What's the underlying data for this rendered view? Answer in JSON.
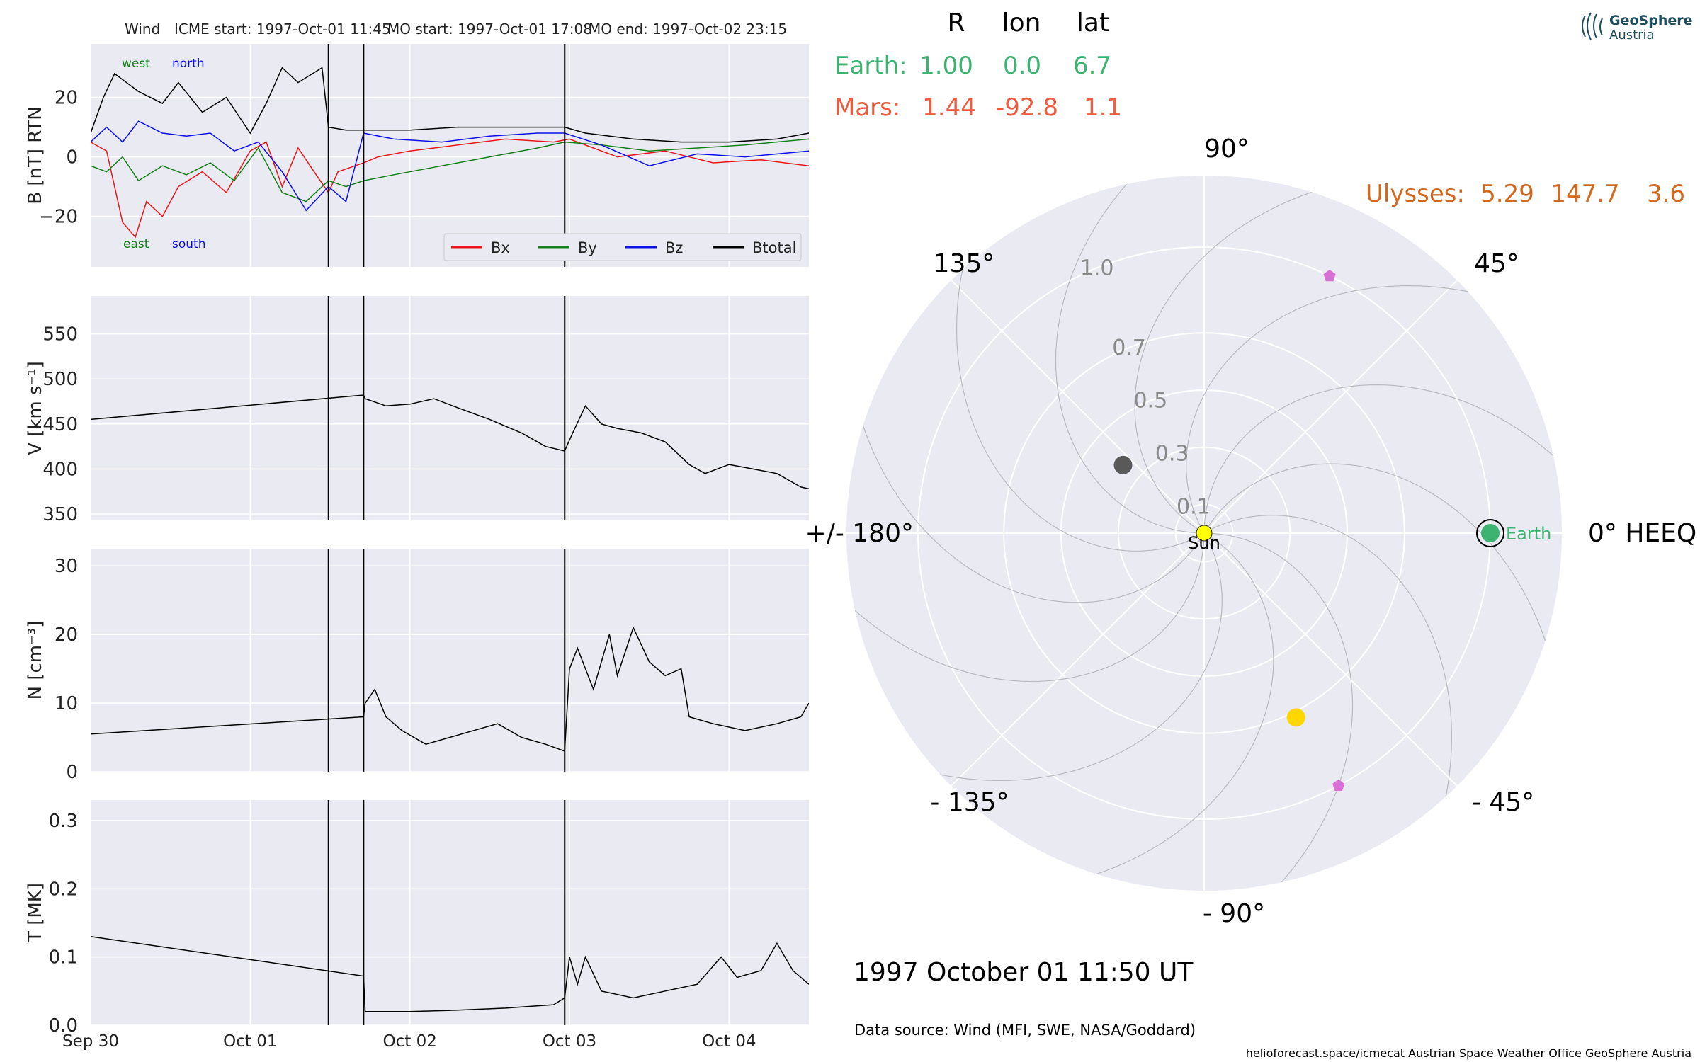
{
  "header": {
    "spacecraft": "Wind",
    "icme_start": "ICME start: 1997-Oct-01 11:45",
    "mo_start": "MO start: 1997-Oct-01 17:08",
    "mo_end": "MO end: 1997-Oct-02 23:15"
  },
  "logo": {
    "line1": "GeoSphere",
    "line2": "Austria"
  },
  "colors": {
    "bx": "#e8161a",
    "by": "#15801a",
    "bz": "#0b10e6",
    "btotal": "#000000",
    "panel_bg": "#eaeaf2",
    "earth": "#3cb371",
    "mars": "#ee5b3e",
    "ulysses": "#d2691e",
    "mercury": "#595959",
    "venus": "#ffd700",
    "stereo": "#da70d6",
    "sun": "#ffff00"
  },
  "chart_data": [
    {
      "type": "line",
      "ylabel": "B [nT] RTN",
      "ylim": [
        -37,
        38
      ],
      "yticks": [
        20,
        0,
        -20
      ],
      "ytick_labels": [
        "20",
        "0",
        "−20"
      ],
      "xlim_days": [
        0,
        4.5
      ],
      "xtick_labels": [
        "Sep 30",
        "Oct 01",
        "Oct 02",
        "Oct 03",
        "Oct 04"
      ],
      "event_lines_days": [
        1.49,
        1.71,
        2.97
      ],
      "annotations": {
        "west": "west",
        "north": "north",
        "east": "east",
        "south": "south"
      },
      "legend_position": "lower right",
      "series": [
        {
          "name": "Bx",
          "color_key": "bx",
          "x": [
            0,
            0.1,
            0.15,
            0.2,
            0.28,
            0.35,
            0.45,
            0.55,
            0.7,
            0.85,
            1.0,
            1.1,
            1.2,
            1.3,
            1.4,
            1.49,
            1.55,
            1.71,
            1.8,
            2.0,
            2.3,
            2.6,
            2.9,
            3.0,
            3.3,
            3.6,
            3.9,
            4.2,
            4.5
          ],
          "y": [
            5,
            2,
            -10,
            -22,
            -27,
            -15,
            -20,
            -10,
            -5,
            -12,
            2,
            5,
            -10,
            3,
            -5,
            -12,
            -5,
            -2,
            0,
            2,
            4,
            6,
            5,
            6,
            0,
            2,
            -2,
            -1,
            -3
          ]
        },
        {
          "name": "By",
          "color_key": "by",
          "x": [
            0,
            0.1,
            0.2,
            0.3,
            0.45,
            0.6,
            0.75,
            0.9,
            1.05,
            1.2,
            1.35,
            1.49,
            1.6,
            1.71,
            1.9,
            2.2,
            2.5,
            2.8,
            2.97,
            3.2,
            3.5,
            3.8,
            4.1,
            4.5
          ],
          "y": [
            -3,
            -5,
            0,
            -8,
            -3,
            -6,
            -2,
            -8,
            3,
            -12,
            -15,
            -8,
            -10,
            -8,
            -6,
            -3,
            0,
            3,
            5,
            4,
            2,
            3,
            4,
            6
          ]
        },
        {
          "name": "Bz",
          "color_key": "bz",
          "x": [
            0,
            0.1,
            0.2,
            0.3,
            0.45,
            0.6,
            0.75,
            0.9,
            1.05,
            1.2,
            1.35,
            1.49,
            1.6,
            1.71,
            1.9,
            2.2,
            2.5,
            2.8,
            2.97,
            3.2,
            3.5,
            3.8,
            4.1,
            4.5
          ],
          "y": [
            5,
            10,
            5,
            12,
            8,
            7,
            8,
            2,
            5,
            -5,
            -18,
            -10,
            -15,
            8,
            6,
            5,
            7,
            8,
            8,
            4,
            -3,
            1,
            0,
            2
          ]
        },
        {
          "name": "Btotal",
          "color_key": "btotal",
          "x": [
            0,
            0.08,
            0.15,
            0.3,
            0.45,
            0.55,
            0.7,
            0.85,
            1.0,
            1.1,
            1.2,
            1.3,
            1.45,
            1.49,
            1.6,
            1.71,
            2.0,
            2.3,
            2.6,
            2.97,
            3.1,
            3.4,
            3.7,
            4.0,
            4.3,
            4.5
          ],
          "y": [
            8,
            20,
            28,
            22,
            18,
            25,
            15,
            20,
            8,
            18,
            30,
            25,
            30,
            10,
            9,
            9,
            9,
            10,
            10,
            10,
            8,
            6,
            5,
            5,
            6,
            8
          ]
        }
      ]
    },
    {
      "type": "line",
      "ylabel": "V [km s⁻¹]",
      "ylim": [
        343,
        592
      ],
      "yticks": [
        550,
        500,
        450,
        400,
        350
      ],
      "ytick_labels": [
        "550",
        "500",
        "450",
        "400",
        "350"
      ],
      "xlim_days": [
        0,
        4.5
      ],
      "event_lines_days": [
        1.49,
        1.71,
        2.97
      ],
      "series": [
        {
          "name": "",
          "color_key": "btotal",
          "x": [
            0,
            1.71,
            1.72,
            1.85,
            2.0,
            2.15,
            2.3,
            2.5,
            2.7,
            2.85,
            2.97,
            3.02,
            3.1,
            3.2,
            3.3,
            3.45,
            3.6,
            3.75,
            3.85,
            4.0,
            4.15,
            4.3,
            4.45,
            4.5
          ],
          "y": [
            455,
            482,
            478,
            470,
            472,
            478,
            468,
            455,
            440,
            425,
            420,
            440,
            470,
            450,
            445,
            440,
            430,
            405,
            395,
            405,
            400,
            395,
            380,
            378
          ]
        }
      ]
    },
    {
      "type": "line",
      "ylabel": "N [cm⁻³]",
      "ylim": [
        0,
        32.5
      ],
      "yticks": [
        30,
        20,
        10,
        0
      ],
      "ytick_labels": [
        "30",
        "20",
        "10",
        "0"
      ],
      "xlim_days": [
        0,
        4.5
      ],
      "event_lines_days": [
        1.49,
        1.71,
        2.97
      ],
      "series": [
        {
          "name": "",
          "color_key": "btotal",
          "x": [
            0,
            1.71,
            1.72,
            1.78,
            1.85,
            1.95,
            2.1,
            2.25,
            2.4,
            2.55,
            2.7,
            2.85,
            2.97,
            3.0,
            3.05,
            3.15,
            3.25,
            3.3,
            3.4,
            3.5,
            3.6,
            3.7,
            3.75,
            3.9,
            4.1,
            4.3,
            4.45,
            4.5
          ],
          "y": [
            5.5,
            8,
            10,
            12,
            8,
            6,
            4,
            5,
            6,
            7,
            5,
            4,
            3,
            15,
            18,
            12,
            20,
            14,
            21,
            16,
            14,
            15,
            8,
            7,
            6,
            7,
            8,
            10
          ]
        }
      ]
    },
    {
      "type": "line",
      "ylabel": "T [MK]",
      "ylim": [
        0,
        0.33
      ],
      "yticks": [
        0.3,
        0.2,
        0.1,
        0.0
      ],
      "ytick_labels": [
        "0.3",
        "0.2",
        "0.1",
        "0.0"
      ],
      "xlim_days": [
        0,
        4.5
      ],
      "xtick_labels": [
        "Sep 30",
        "Oct 01",
        "Oct 02",
        "Oct 03",
        "Oct 04"
      ],
      "event_lines_days": [
        1.49,
        1.71,
        2.97
      ],
      "series": [
        {
          "name": "",
          "color_key": "btotal",
          "x": [
            0,
            1.71,
            1.72,
            2.0,
            2.3,
            2.6,
            2.9,
            2.97,
            3.0,
            3.05,
            3.1,
            3.2,
            3.4,
            3.6,
            3.8,
            3.95,
            4.05,
            4.2,
            4.3,
            4.4,
            4.5
          ],
          "y": [
            0.13,
            0.072,
            0.02,
            0.02,
            0.022,
            0.025,
            0.03,
            0.04,
            0.1,
            0.06,
            0.1,
            0.05,
            0.04,
            0.05,
            0.06,
            0.1,
            0.07,
            0.08,
            0.12,
            0.08,
            0.06
          ]
        }
      ]
    },
    {
      "type": "scatter",
      "subtype": "polar",
      "radial_ticks": [
        "1.0",
        "0.7",
        "0.5",
        "0.3",
        "0.1"
      ],
      "radial_tick_values": [
        1.0,
        0.7,
        0.5,
        0.3,
        0.1
      ],
      "angle_labels": {
        "a0": "0° HEEQ",
        "a45": "45°",
        "a90": "90°",
        "a135": "135°",
        "a180": "+/- 180°",
        "am135": "- 135°",
        "am90": "- 90°",
        "am45": "- 45°"
      },
      "points": [
        {
          "name": "Earth",
          "r": 1.0,
          "lon": 0.0,
          "color_key": "earth",
          "ring": true,
          "label": "Earth"
        },
        {
          "name": "Mercury",
          "r": 0.37,
          "lon": 140,
          "color_key": "mercury"
        },
        {
          "name": "Venus",
          "r": 0.72,
          "lon": -63.5,
          "color_key": "venus"
        },
        {
          "name": "Sun",
          "r": 0.0,
          "lon": 0.0,
          "color_key": "sun",
          "label": "Sun"
        },
        {
          "name": "STEREO-A",
          "r": 1.0,
          "lon": 64,
          "color_key": "stereo",
          "marker": "pentagon"
        },
        {
          "name": "STEREO-B",
          "r": 1.0,
          "lon": -62,
          "color_key": "stereo",
          "marker": "pentagon"
        }
      ]
    }
  ],
  "positions_table": {
    "headers": [
      "R",
      "lon",
      "lat"
    ],
    "earth": {
      "label": "Earth:",
      "r": "1.00",
      "lon": "0.0",
      "lat": "6.7"
    },
    "mars": {
      "label": "Mars:",
      "r": "1.44",
      "lon": "-92.8",
      "lat": "1.1"
    },
    "ulysses": {
      "label": "Ulysses:",
      "r": "5.29",
      "lon": "147.7",
      "lat": "3.6"
    }
  },
  "date_label": "1997 October 01  11:50 UT",
  "data_source": "Data source: Wind (MFI, SWE, NASA/Goddard)",
  "footer": "helioforecast.space/icmecat   Austrian Space Weather Office   GeoSphere Austria"
}
